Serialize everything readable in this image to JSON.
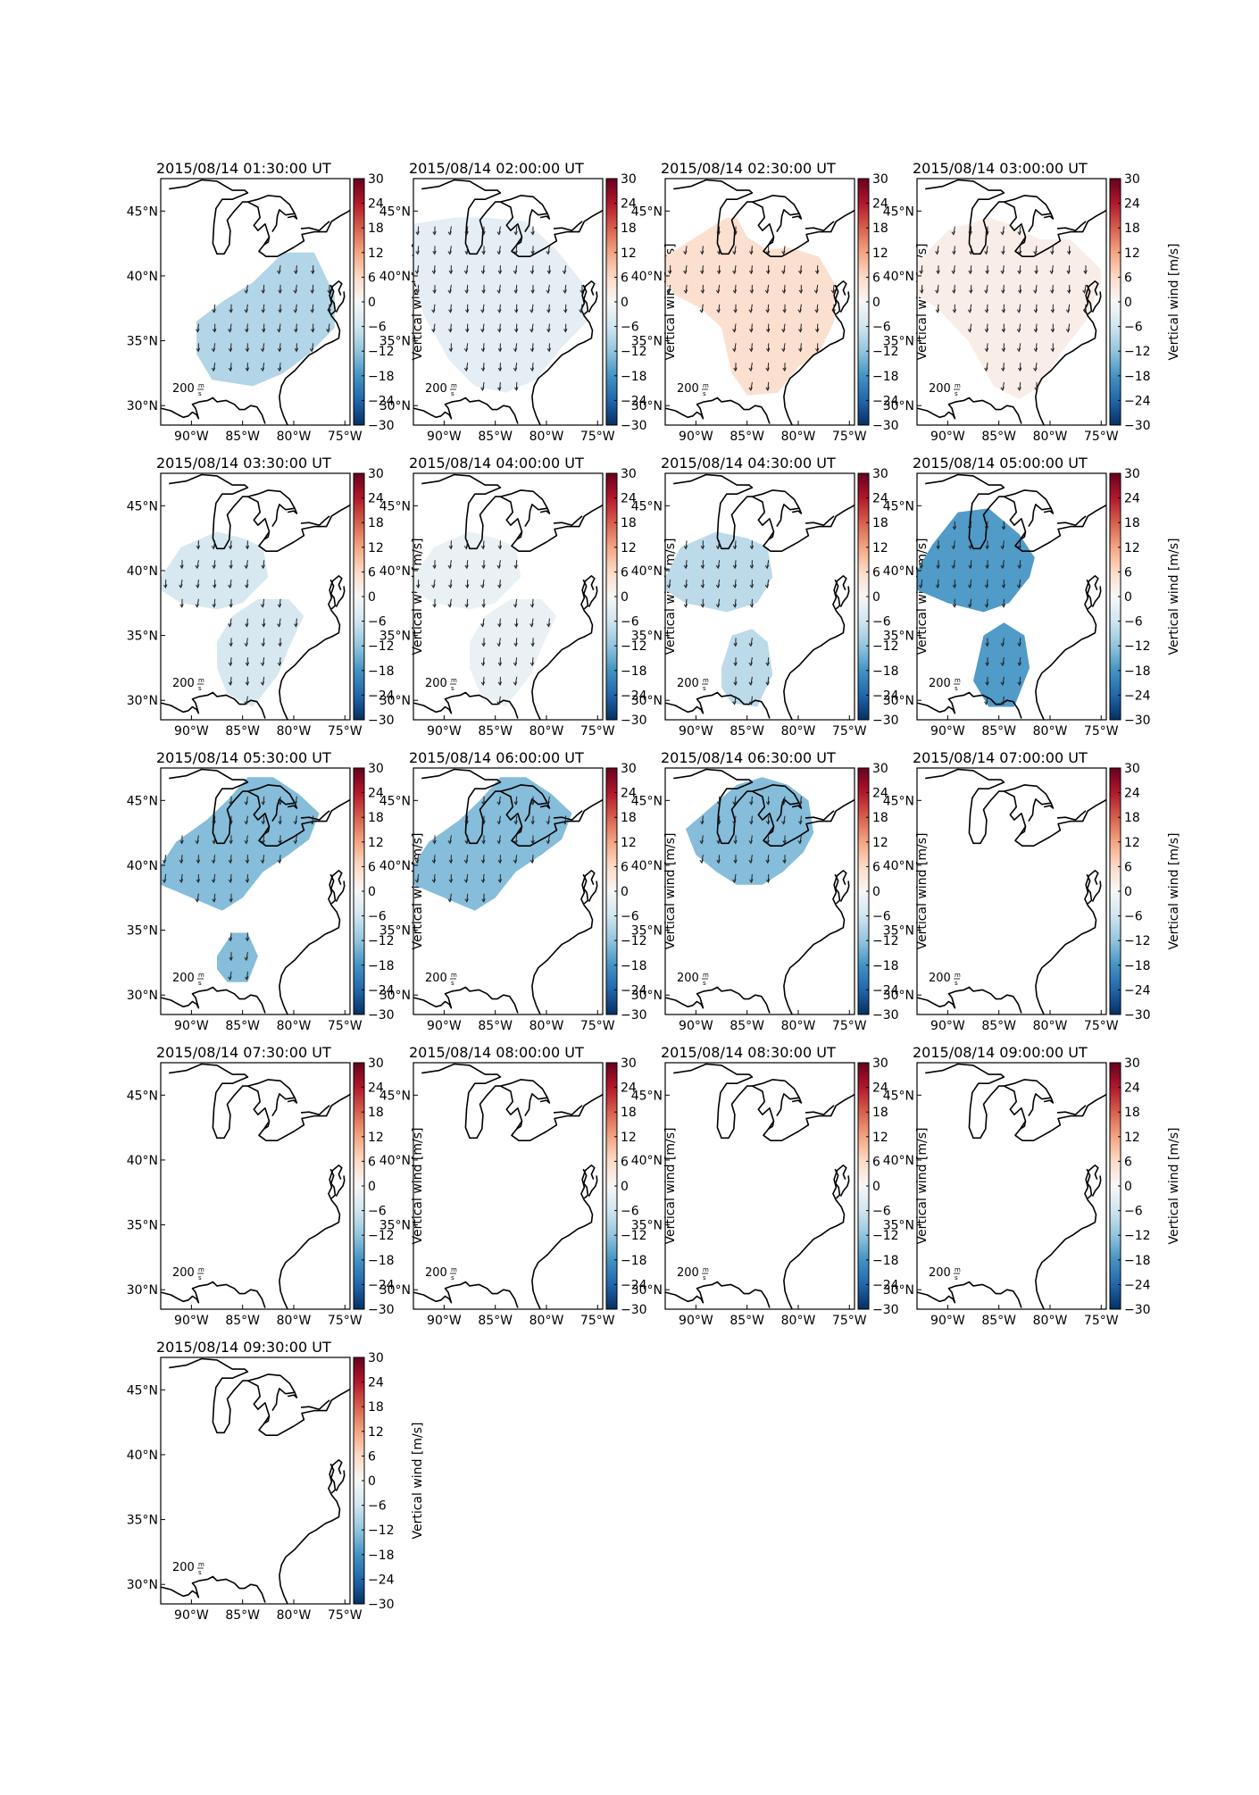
{
  "figure": {
    "panels": [
      {
        "title": "2015/08/14 01:30:00 UT",
        "wind": -9,
        "regions": [
          [
            [
              -89.5,
              36.5
            ],
            [
              -87,
              38
            ],
            [
              -84,
              39.5
            ],
            [
              -81,
              41.8
            ],
            [
              -78,
              41.8
            ],
            [
              -76,
              38.5
            ],
            [
              -76,
              36
            ],
            [
              -78.5,
              34
            ],
            [
              -81,
              32.5
            ],
            [
              -84,
              31.5
            ],
            [
              -88,
              32
            ],
            [
              -89.5,
              34
            ]
          ]
        ]
      },
      {
        "title": "2015/08/14 02:00:00 UT",
        "wind": -3,
        "regions": [
          [
            [
              -93,
              44
            ],
            [
              -89,
              44.5
            ],
            [
              -86,
              44.5
            ],
            [
              -82,
              44.2
            ],
            [
              -79,
              42
            ],
            [
              -76.5,
              39.5
            ],
            [
              -76,
              36.5
            ],
            [
              -78.5,
              34.5
            ],
            [
              -81,
              32
            ],
            [
              -84,
              31
            ],
            [
              -87,
              31.5
            ],
            [
              -89.5,
              33.5
            ],
            [
              -92,
              37
            ],
            [
              -93,
              40
            ]
          ]
        ]
      },
      {
        "title": "2015/08/14 02:30:00 UT",
        "wind": 5,
        "regions": [
          [
            [
              -93,
              41.5
            ],
            [
              -91,
              42.5
            ],
            [
              -89,
              43.5
            ],
            [
              -87,
              44.5
            ],
            [
              -86,
              44.5
            ],
            [
              -85,
              43
            ],
            [
              -83,
              42
            ],
            [
              -81,
              42.2
            ],
            [
              -78,
              41.5
            ],
            [
              -76.5,
              39.5
            ],
            [
              -76.5,
              36.5
            ],
            [
              -78,
              34
            ],
            [
              -80,
              33
            ],
            [
              -82,
              31
            ],
            [
              -85,
              30.8
            ],
            [
              -86.5,
              32.5
            ],
            [
              -87.5,
              36
            ],
            [
              -89.5,
              37.5
            ],
            [
              -92,
              38.5
            ],
            [
              -93,
              39.5
            ]
          ]
        ]
      },
      {
        "title": "2015/08/14 03:00:00 UT",
        "wind": 2,
        "regions": [
          [
            [
              -93,
              41
            ],
            [
              -90,
              43.5
            ],
            [
              -86,
              44.5
            ],
            [
              -84,
              44
            ],
            [
              -81,
              42.8
            ],
            [
              -78,
              42.8
            ],
            [
              -75,
              40.5
            ],
            [
              -75,
              39.5
            ],
            [
              -76.5,
              36.5
            ],
            [
              -79,
              34
            ],
            [
              -81,
              31.5
            ],
            [
              -83,
              30.5
            ],
            [
              -85.5,
              31.5
            ],
            [
              -88,
              35
            ],
            [
              -91,
              37.5
            ],
            [
              -93,
              38.5
            ]
          ]
        ]
      },
      {
        "title": "2015/08/14 03:30:00 UT",
        "wind": -5,
        "regions": [
          [
            [
              -93,
              39.5
            ],
            [
              -91,
              41.8
            ],
            [
              -87.5,
              43
            ],
            [
              -85,
              42.5
            ],
            [
              -83,
              41.8
            ],
            [
              -82.5,
              39.5
            ],
            [
              -85,
              37.5
            ],
            [
              -87.5,
              37
            ],
            [
              -91,
              37.5
            ],
            [
              -93,
              38.5
            ]
          ],
          [
            [
              -87.5,
              34.5
            ],
            [
              -86,
              36.5
            ],
            [
              -83.5,
              37.8
            ],
            [
              -80.5,
              37.8
            ],
            [
              -79,
              36.5
            ],
            [
              -80.5,
              34
            ],
            [
              -81.5,
              32
            ],
            [
              -84,
              29.5
            ],
            [
              -86.5,
              30.5
            ],
            [
              -87.5,
              32.5
            ]
          ]
        ]
      },
      {
        "title": "2015/08/14 04:00:00 UT",
        "wind": -2,
        "regions": [
          [
            [
              -93,
              39.5
            ],
            [
              -91,
              41.8
            ],
            [
              -87.5,
              43
            ],
            [
              -85,
              42.5
            ],
            [
              -83,
              41.8
            ],
            [
              -82.5,
              39.5
            ],
            [
              -85,
              37.5
            ],
            [
              -87.5,
              37
            ],
            [
              -91,
              37.5
            ],
            [
              -93,
              38.5
            ]
          ],
          [
            [
              -87.5,
              34.5
            ],
            [
              -86,
              36.5
            ],
            [
              -83.5,
              37.8
            ],
            [
              -80.5,
              37.8
            ],
            [
              -79,
              36.5
            ],
            [
              -80.5,
              34
            ],
            [
              -81.5,
              32
            ],
            [
              -84,
              29.5
            ],
            [
              -86.5,
              30.5
            ],
            [
              -87.5,
              32.5
            ]
          ]
        ]
      },
      {
        "title": "2015/08/14 04:30:00 UT",
        "wind": -8,
        "regions": [
          [
            [
              -93,
              39.5
            ],
            [
              -91.5,
              41.8
            ],
            [
              -88,
              43
            ],
            [
              -85,
              42.5
            ],
            [
              -83,
              41.8
            ],
            [
              -82.5,
              39.5
            ],
            [
              -84,
              37.5
            ],
            [
              -87,
              36.8
            ],
            [
              -91,
              37.5
            ],
            [
              -93,
              38.5
            ]
          ],
          [
            [
              -87.5,
              32.5
            ],
            [
              -86.5,
              35
            ],
            [
              -84.5,
              35.5
            ],
            [
              -83,
              34.5
            ],
            [
              -82.5,
              32
            ],
            [
              -84,
              29.5
            ],
            [
              -86.5,
              29.8
            ],
            [
              -87.5,
              31
            ]
          ]
        ]
      },
      {
        "title": "2015/08/14 05:00:00 UT",
        "wind": -17,
        "regions": [
          [
            [
              -93,
              40
            ],
            [
              -91.5,
              42
            ],
            [
              -89,
              44.5
            ],
            [
              -86,
              44.8
            ],
            [
              -83,
              42.8
            ],
            [
              -81.5,
              41
            ],
            [
              -82,
              39.5
            ],
            [
              -84,
              37.5
            ],
            [
              -86.5,
              36.8
            ],
            [
              -90,
              37.5
            ],
            [
              -93,
              38.5
            ]
          ],
          [
            [
              -86.5,
              35
            ],
            [
              -84.5,
              36
            ],
            [
              -82.5,
              35
            ],
            [
              -82,
              32.5
            ],
            [
              -83.5,
              29.5
            ],
            [
              -86,
              29.5
            ],
            [
              -87.5,
              31.5
            ]
          ]
        ]
      },
      {
        "title": "2015/08/14 05:30:00 UT",
        "wind": -13,
        "regions": [
          [
            [
              -93,
              40
            ],
            [
              -91.5,
              41.8
            ],
            [
              -88.5,
              43.5
            ],
            [
              -86.5,
              45
            ],
            [
              -84.5,
              46.8
            ],
            [
              -82,
              46.8
            ],
            [
              -79.5,
              45.5
            ],
            [
              -77.5,
              44
            ],
            [
              -78.5,
              42
            ],
            [
              -80.5,
              40.8
            ],
            [
              -83,
              39.5
            ],
            [
              -85,
              37.5
            ],
            [
              -87,
              36.5
            ],
            [
              -90,
              37.5
            ],
            [
              -93,
              38.5
            ]
          ],
          [
            [
              -87.5,
              33
            ],
            [
              -86,
              34.8
            ],
            [
              -84.5,
              34.8
            ],
            [
              -83.5,
              33
            ],
            [
              -84.5,
              31
            ],
            [
              -86.5,
              31
            ],
            [
              -87.5,
              32
            ]
          ]
        ]
      },
      {
        "title": "2015/08/14 06:00:00 UT",
        "wind": -13,
        "regions": [
          [
            [
              -93,
              40
            ],
            [
              -91.5,
              41.8
            ],
            [
              -88.5,
              43.5
            ],
            [
              -86.5,
              45
            ],
            [
              -84.5,
              46.8
            ],
            [
              -82,
              46.8
            ],
            [
              -79.5,
              45.5
            ],
            [
              -77.5,
              44
            ],
            [
              -78.5,
              42
            ],
            [
              -80.5,
              40.8
            ],
            [
              -83,
              39.5
            ],
            [
              -85,
              37.5
            ],
            [
              -87,
              36.5
            ],
            [
              -90,
              37.5
            ],
            [
              -93,
              38.5
            ]
          ]
        ]
      },
      {
        "title": "2015/08/14 06:30:00 UT",
        "wind": -13,
        "regions": [
          [
            [
              -91,
              42.8
            ],
            [
              -88.5,
              44.5
            ],
            [
              -86,
              46.2
            ],
            [
              -83.5,
              46.8
            ],
            [
              -81,
              46.2
            ],
            [
              -79,
              45
            ],
            [
              -78.5,
              42.5
            ],
            [
              -79.5,
              41
            ],
            [
              -81.5,
              39.5
            ],
            [
              -83.5,
              38.5
            ],
            [
              -86,
              38.5
            ],
            [
              -88,
              39.5
            ],
            [
              -90,
              40.8
            ]
          ]
        ]
      },
      {
        "title": "2015/08/14 07:00:00 UT",
        "wind": 0,
        "regions": []
      },
      {
        "title": "2015/08/14 07:30:00 UT",
        "wind": 0,
        "regions": []
      },
      {
        "title": "2015/08/14 08:00:00 UT",
        "wind": 0,
        "regions": []
      },
      {
        "title": "2015/08/14 08:30:00 UT",
        "wind": 0,
        "regions": []
      },
      {
        "title": "2015/08/14 09:00:00 UT",
        "wind": 0,
        "regions": []
      },
      {
        "title": "2015/08/14 09:30:00 UT",
        "wind": 0,
        "regions": []
      }
    ],
    "lon_ticks": [
      {
        "value": -90,
        "label": "90°W"
      },
      {
        "value": -85,
        "label": "85°W"
      },
      {
        "value": -80,
        "label": "80°W"
      },
      {
        "value": -75,
        "label": "75°W"
      }
    ],
    "lat_ticks": [
      {
        "value": 30,
        "label": "30°N"
      },
      {
        "value": 35,
        "label": "35°N"
      },
      {
        "value": 40,
        "label": "40°N"
      },
      {
        "value": 45,
        "label": "45°N"
      }
    ],
    "extent": {
      "lon": [
        -93,
        -74.5
      ],
      "lat": [
        28.5,
        47.5
      ]
    },
    "colorbar": {
      "label": "Vertical wind [m/s]",
      "range": [
        -30,
        30
      ],
      "ticks": [
        30,
        24,
        18,
        12,
        6,
        0,
        -6,
        -12,
        -18,
        -24,
        -30
      ],
      "colormap": "RdBu_r"
    },
    "quiver_key": {
      "value": "200",
      "unit_num": "m",
      "unit_den": "s"
    }
  }
}
